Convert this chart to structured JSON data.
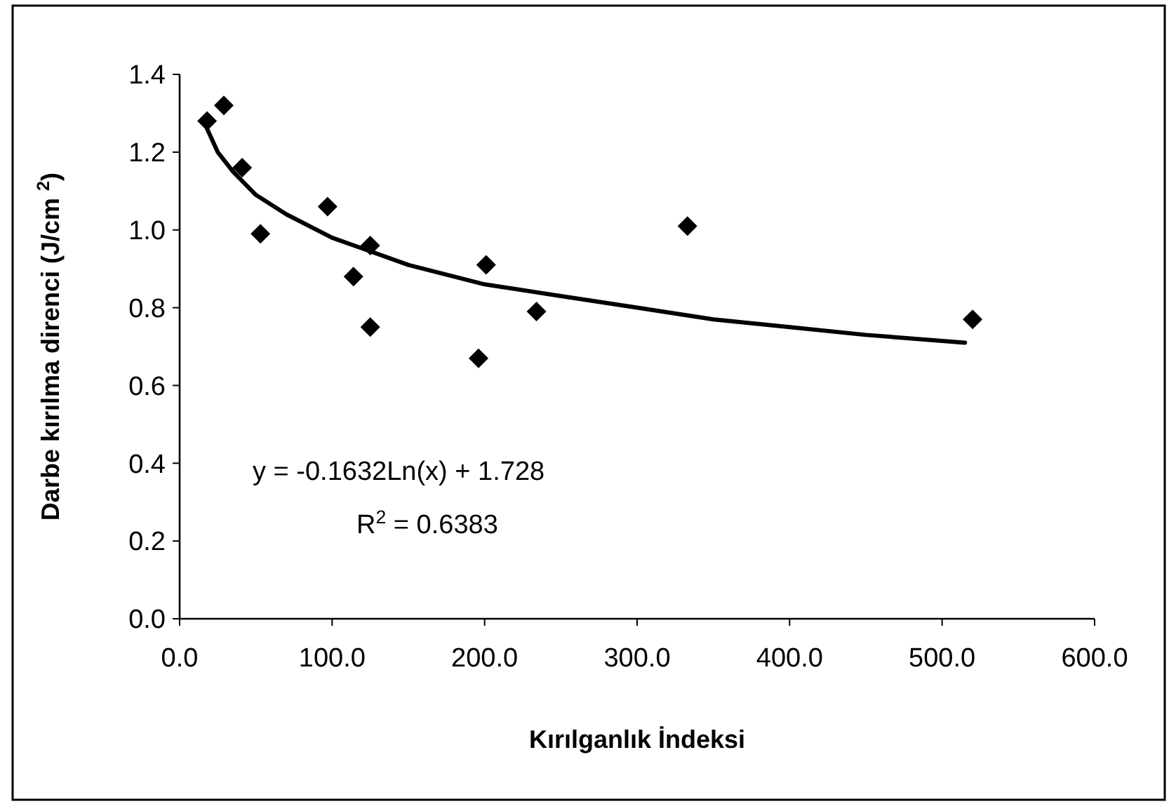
{
  "chart_data": {
    "type": "scatter",
    "xlabel": "Kırılganlık İndeksi",
    "ylabel": "Darbe kırılma direnci (J/cm $^{2}$)",
    "xlim": [
      0,
      600
    ],
    "xticks": [
      {
        "value": 0,
        "label": "0.0"
      },
      {
        "value": 100,
        "label": "100.0"
      },
      {
        "value": 200,
        "label": "200.0"
      },
      {
        "value": 300,
        "label": "300.0"
      },
      {
        "value": 400,
        "label": "400.0"
      },
      {
        "value": 500,
        "label": "500.0"
      },
      {
        "value": 600,
        "label": "600.0"
      }
    ],
    "ylim": [
      0,
      1.4
    ],
    "yticks": [
      {
        "value": 0,
        "label": "0.0"
      },
      {
        "value": 0.2,
        "label": "0.2"
      },
      {
        "value": 0.4,
        "label": "0.4"
      },
      {
        "value": 0.6,
        "label": "0.6"
      },
      {
        "value": 0.8,
        "label": "0.8"
      },
      {
        "value": 1,
        "label": "1.0"
      },
      {
        "value": 1.2,
        "label": "1.2"
      },
      {
        "value": 1.4,
        "label": "1.4"
      }
    ],
    "annotations": [
      "y = -0.1632Ln(x) + 1.728",
      "R$^{2}$ = 0.6383"
    ],
    "series": [
      {
        "color": "#000000",
        "marker": "diamond",
        "x": [
          18,
          29,
          41,
          53,
          97,
          114,
          125,
          125,
          196,
          201,
          234,
          333,
          520
        ],
        "values": [
          1.28,
          1.32,
          1.16,
          0.99,
          1.06,
          0.88,
          0.96,
          0.75,
          0.67,
          0.91,
          0.79,
          1.01,
          0.77
        ]
      },
      {
        "type": "line",
        "color": "#000000",
        "marker": "none",
        "line_style": "solid",
        "x": [
          18,
          25,
          35,
          50,
          70,
          100,
          150,
          200,
          250,
          300,
          350,
          400,
          450,
          515
        ],
        "values": [
          1.26,
          1.2,
          1.15,
          1.09,
          1.04,
          0.98,
          0.91,
          0.86,
          0.83,
          0.8,
          0.77,
          0.75,
          0.73,
          0.71
        ]
      }
    ]
  }
}
